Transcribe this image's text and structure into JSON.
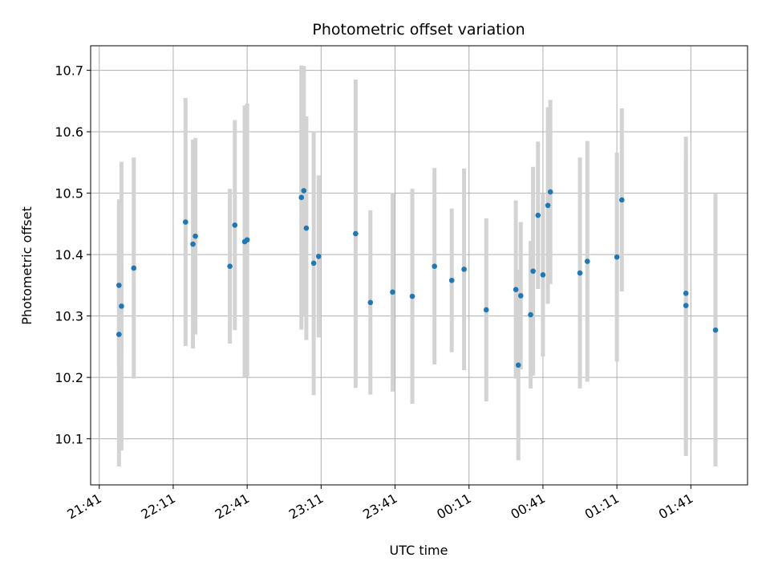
{
  "chart_data": {
    "type": "scatter",
    "title": "Photometric offset variation",
    "xlabel": "UTC time",
    "ylabel": "Photometric offset",
    "x_axis": {
      "kind": "time",
      "ticks": [
        "21:41",
        "22:11",
        "22:41",
        "23:11",
        "23:41",
        "00:11",
        "00:41",
        "01:11",
        "01:41"
      ],
      "tick_minutes_since_first_tick": [
        0,
        30,
        60,
        90,
        120,
        150,
        180,
        210,
        240
      ],
      "range_minutes_since_first_tick": [
        -3.5,
        263
      ]
    },
    "y_axis": {
      "ticks": [
        "10.1",
        "10.2",
        "10.3",
        "10.4",
        "10.5",
        "10.6",
        "10.7"
      ],
      "tick_values": [
        10.1,
        10.2,
        10.3,
        10.4,
        10.5,
        10.6,
        10.7
      ],
      "ylim": [
        10.025,
        10.74
      ]
    },
    "grid": true,
    "marker_color": "#1f77b4",
    "errorbar_color": "#d3d3d3",
    "points": [
      {
        "time": "21:49",
        "y": 10.35,
        "err": 0.14
      },
      {
        "time": "21:49",
        "y": 10.27,
        "err": 0.215
      },
      {
        "time": "21:50",
        "y": 10.316,
        "err": 0.235
      },
      {
        "time": "21:55",
        "y": 10.378,
        "err": 0.18
      },
      {
        "time": "22:16",
        "y": 10.453,
        "err": 0.202
      },
      {
        "time": "22:19",
        "y": 10.417,
        "err": 0.17
      },
      {
        "time": "22:20",
        "y": 10.43,
        "err": 0.16
      },
      {
        "time": "22:34",
        "y": 10.381,
        "err": 0.126
      },
      {
        "time": "22:36",
        "y": 10.448,
        "err": 0.171
      },
      {
        "time": "22:40",
        "y": 10.421,
        "err": 0.222
      },
      {
        "time": "22:41",
        "y": 10.424,
        "err": 0.222
      },
      {
        "time": "23:03",
        "y": 10.493,
        "err": 0.215
      },
      {
        "time": "23:04",
        "y": 10.504,
        "err": 0.203
      },
      {
        "time": "23:05",
        "y": 10.443,
        "err": 0.182
      },
      {
        "time": "23:08",
        "y": 10.386,
        "err": 0.215
      },
      {
        "time": "23:10",
        "y": 10.397,
        "err": 0.132
      },
      {
        "time": "23:25",
        "y": 10.434,
        "err": 0.251
      },
      {
        "time": "23:31",
        "y": 10.322,
        "err": 0.15
      },
      {
        "time": "23:40",
        "y": 10.339,
        "err": 0.162
      },
      {
        "time": "23:48",
        "y": 10.332,
        "err": 0.175
      },
      {
        "time": "23:57",
        "y": 10.381,
        "err": 0.16
      },
      {
        "time": "00:04",
        "y": 10.358,
        "err": 0.117
      },
      {
        "time": "00:09",
        "y": 10.376,
        "err": 0.164
      },
      {
        "time": "00:18",
        "y": 10.31,
        "err": 0.149
      },
      {
        "time": "00:30",
        "y": 10.343,
        "err": 0.145
      },
      {
        "time": "00:31",
        "y": 10.22,
        "err": 0.155
      },
      {
        "time": "00:32",
        "y": 10.333,
        "err": 0.12
      },
      {
        "time": "00:36",
        "y": 10.302,
        "err": 0.12
      },
      {
        "time": "00:37",
        "y": 10.373,
        "err": 0.17
      },
      {
        "time": "00:39",
        "y": 10.464,
        "err": 0.12
      },
      {
        "time": "00:41",
        "y": 10.367,
        "err": 0.133
      },
      {
        "time": "00:43",
        "y": 10.48,
        "err": 0.16
      },
      {
        "time": "00:44",
        "y": 10.502,
        "err": 0.15
      },
      {
        "time": "00:56",
        "y": 10.37,
        "err": 0.188
      },
      {
        "time": "00:59",
        "y": 10.389,
        "err": 0.196
      },
      {
        "time": "01:11",
        "y": 10.396,
        "err": 0.17
      },
      {
        "time": "01:13",
        "y": 10.489,
        "err": 0.149
      },
      {
        "time": "01:39",
        "y": 10.337,
        "err": 0.255
      },
      {
        "time": "01:39",
        "y": 10.317,
        "err": 0.245
      },
      {
        "time": "01:51",
        "y": 10.277,
        "err": 0.222
      }
    ]
  }
}
